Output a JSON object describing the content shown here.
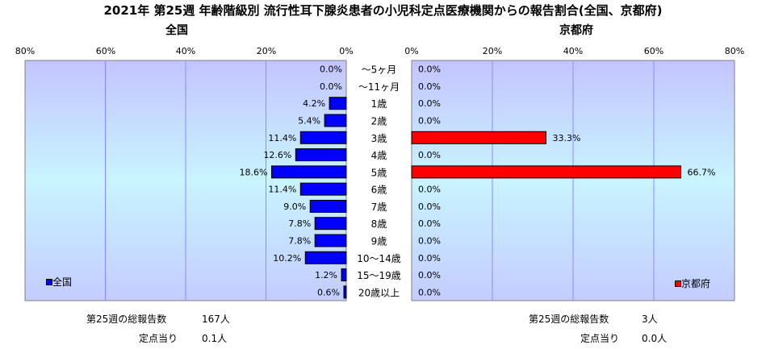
{
  "title": "2021年 第25週 年齢階級別 流行性耳下腺炎患者の小児科定点医療機関からの報告割合(全国、京都府)",
  "colors": {
    "national": "#0000ff",
    "kyoto": "#ff0000"
  },
  "chart_data": {
    "type": "bar",
    "orientation": "horizontal",
    "layout": "back-to-back",
    "categories": [
      "～5ヶ月",
      "～11ヶ月",
      "1歳",
      "2歳",
      "3歳",
      "4歳",
      "5歳",
      "6歳",
      "7歳",
      "8歳",
      "9歳",
      "10～14歳",
      "15～19歳",
      "20歳以上"
    ],
    "xlim": [
      0,
      80
    ],
    "ticks": [
      "80%",
      "60%",
      "40%",
      "20%",
      "0%"
    ],
    "ticks_right": [
      "0%",
      "20%",
      "40%",
      "60%",
      "80%"
    ],
    "grid": true,
    "series": [
      {
        "name": "全国",
        "panel_title": "全国",
        "side": "left",
        "values": [
          0.0,
          0.0,
          4.2,
          5.4,
          11.4,
          12.6,
          18.6,
          11.4,
          9.0,
          7.8,
          7.8,
          10.2,
          1.2,
          0.6
        ],
        "labels": [
          "0.0%",
          "0.0%",
          "4.2%",
          "5.4%",
          "11.4%",
          "12.6%",
          "18.6%",
          "11.4%",
          "9.0%",
          "7.8%",
          "7.8%",
          "10.2%",
          "1.2%",
          "0.6%"
        ]
      },
      {
        "name": "京都府",
        "panel_title": "京都府",
        "side": "right",
        "values": [
          0.0,
          0.0,
          0.0,
          0.0,
          33.3,
          0.0,
          66.7,
          0.0,
          0.0,
          0.0,
          0.0,
          0.0,
          0.0,
          0.0
        ],
        "labels": [
          "0.0%",
          "0.0%",
          "0.0%",
          "0.0%",
          "33.3%",
          "0.0%",
          "66.7%",
          "0.0%",
          "0.0%",
          "0.0%",
          "0.0%",
          "0.0%",
          "0.0%",
          "0.0%"
        ]
      }
    ]
  },
  "footer": {
    "national": {
      "total_label": "第25週の総報告数",
      "total_value": "167人",
      "per_label": "定点当り",
      "per_value": "0.1人"
    },
    "kyoto": {
      "total_label": "第25週の総報告数",
      "total_value": "3人",
      "per_label": "定点当り",
      "per_value": "0.0人"
    }
  }
}
